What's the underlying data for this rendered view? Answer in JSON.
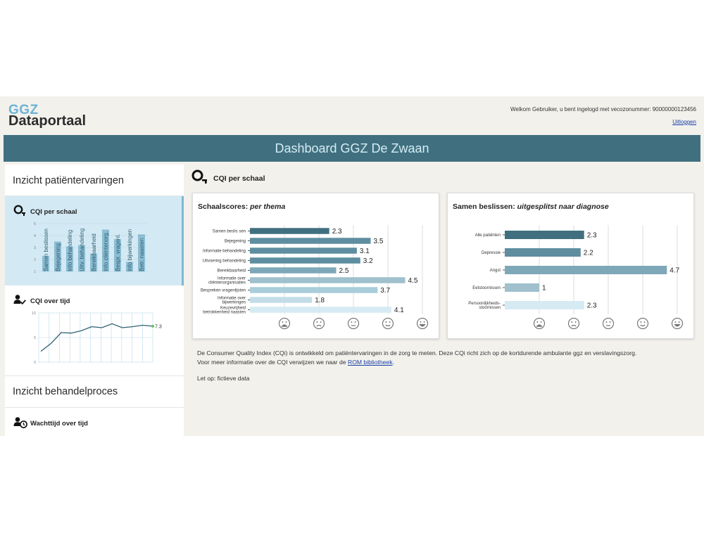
{
  "header": {
    "logo_top": "GGZ",
    "logo_bottom": "Dataportaal",
    "welcome": "Welkom Gebruiker, u bent ingelogd met vecozonummer: 90000000123456",
    "logout": "Uitloggen"
  },
  "banner": {
    "title": "Dashboard GGZ De Zwaan"
  },
  "sidebar": {
    "section1_title": "Inzicht patiëntervaringen",
    "section2_title": "Inzicht behandelproces",
    "cards": [
      {
        "title": "CQI per schaal"
      },
      {
        "title": "CQI over tijd"
      },
      {
        "title": "Wachttijd over tijd"
      }
    ],
    "mini_bar": {
      "yticks": [
        "5",
        "4",
        "3",
        "2",
        "1"
      ],
      "labels": [
        "Samen beslissen",
        "Bejegening",
        "Info behandeling",
        "Uitv. behandeling",
        "Bereikbaarheid",
        "Info cliëntenorg.",
        "Bespr. vragenl.",
        "Info bijwerkingen",
        "Betr. naasten"
      ],
      "values": [
        2.3,
        3.5,
        3.1,
        3.2,
        2.5,
        4.5,
        3.7,
        1.8,
        4.1
      ]
    },
    "mini_line": {
      "yticks": [
        "10",
        "5",
        "0"
      ],
      "values": [
        2.2,
        3.8,
        6.0,
        5.9,
        6.4,
        7.2,
        7.0,
        7.8,
        7.0,
        7.2,
        7.5,
        7.3
      ],
      "last_label": "7.3"
    }
  },
  "main": {
    "title": "CQI per schaal",
    "panel1_title": "Schaalscores: ",
    "panel1_title_em": "per thema",
    "panel2_title": "Samen beslissen: ",
    "panel2_title_em": "uitgesplitst naar diagnose",
    "info_text": "De Consumer Quality Index (CQi) is ontwikkeld om patiëntervaringen in de zorg te meten. Deze CQi richt zich op de kortdurende ambulante ggz en verslavingszorg.",
    "info_text2": "Voor meer informatie over de CQI verwijzen we naar de ",
    "info_link": "ROM bibliotheek",
    "info_text2_end": ".",
    "note": "Let op: fictieve data"
  },
  "chart_data": [
    {
      "type": "bar",
      "orientation": "horizontal",
      "title": "Schaalscores: per thema",
      "categories": [
        "Samen beslis sen",
        "Bejegening",
        "Informatie behandeling",
        "Uitvoering behandeling",
        "Bereikbaarheid",
        "Informatie over cliëntenorganisaties",
        "Bespreken vragenlijsten",
        "Informatie over bijwerkingen",
        "Keuzevrijheid betrokkenheid naasten"
      ],
      "values": [
        2.3,
        3.5,
        3.1,
        3.2,
        2.5,
        4.5,
        3.7,
        1.8,
        4.1
      ],
      "value_labels": [
        "2.3",
        "3.5",
        "3.1",
        "3.2",
        "2.5",
        "4.5",
        "3.7",
        "1.8",
        "4.1"
      ],
      "xlim": [
        0,
        5
      ],
      "colors": [
        "#40707f",
        "#5e8ea0",
        "#5e8ea0",
        "#5e8ea0",
        "#7ea8b8",
        "#9fc0cc",
        "#a9cdd9",
        "#c3dde8",
        "#d6eaf3"
      ],
      "x_ticks_emoji": [
        "very-sad",
        "sad",
        "neutral",
        "happy",
        "very-happy"
      ]
    },
    {
      "type": "bar",
      "orientation": "horizontal",
      "title": "Samen beslissen: uitgesplitst naar diagnose",
      "categories": [
        "Alle patiënten",
        "Depressie",
        "Angst",
        "Eetstoornissen",
        "Persoonlijkheids-stoornissen"
      ],
      "values": [
        2.3,
        2.2,
        4.7,
        1.0,
        2.3
      ],
      "value_labels": [
        "2.3",
        "2.2",
        "4.7",
        "1",
        "2.3"
      ],
      "xlim": [
        0,
        5
      ],
      "colors": [
        "#40707f",
        "#5e8ea0",
        "#7ea8b8",
        "#9fc0cc",
        "#d6eaf3"
      ],
      "x_ticks_emoji": [
        "very-sad",
        "sad",
        "neutral",
        "happy",
        "very-happy"
      ]
    }
  ]
}
